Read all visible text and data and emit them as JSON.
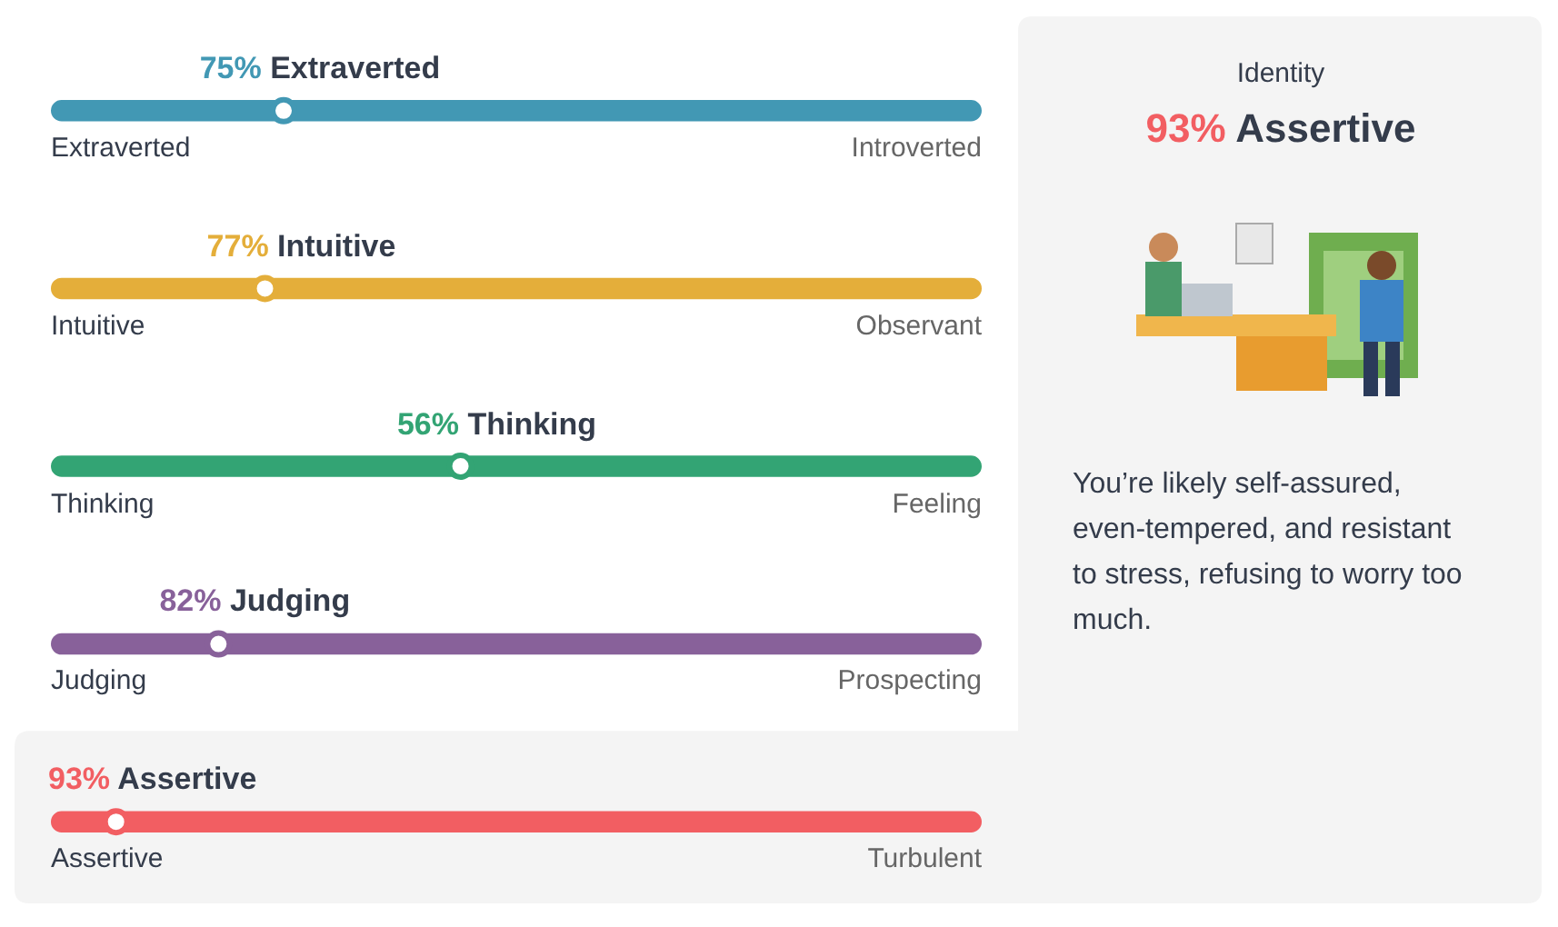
{
  "chart_data": {
    "type": "other",
    "title": "93% Assertive",
    "subtitle": "Identity",
    "categories": [
      "Extraverted",
      "Intuitive",
      "Thinking",
      "Judging",
      "Assertive"
    ],
    "y2_categories": [
      "Introverted",
      "Observant",
      "Feeling",
      "Prospecting",
      "Turbulent"
    ],
    "values": [
      75,
      77,
      56,
      82,
      93
    ],
    "value_labels": [
      "75% Extraverted",
      "77% Intuitive",
      "56% Thinking",
      "82% Judging",
      "93% Assertive"
    ],
    "colors": [
      "#4298b4",
      "#e4ae3a",
      "#33a474",
      "#88619a",
      "#f25e62"
    ],
    "annotations": [
      "You’re likely self-assured, even-tempered, and resistant to stress, refusing to worry too much."
    ]
  }
}
